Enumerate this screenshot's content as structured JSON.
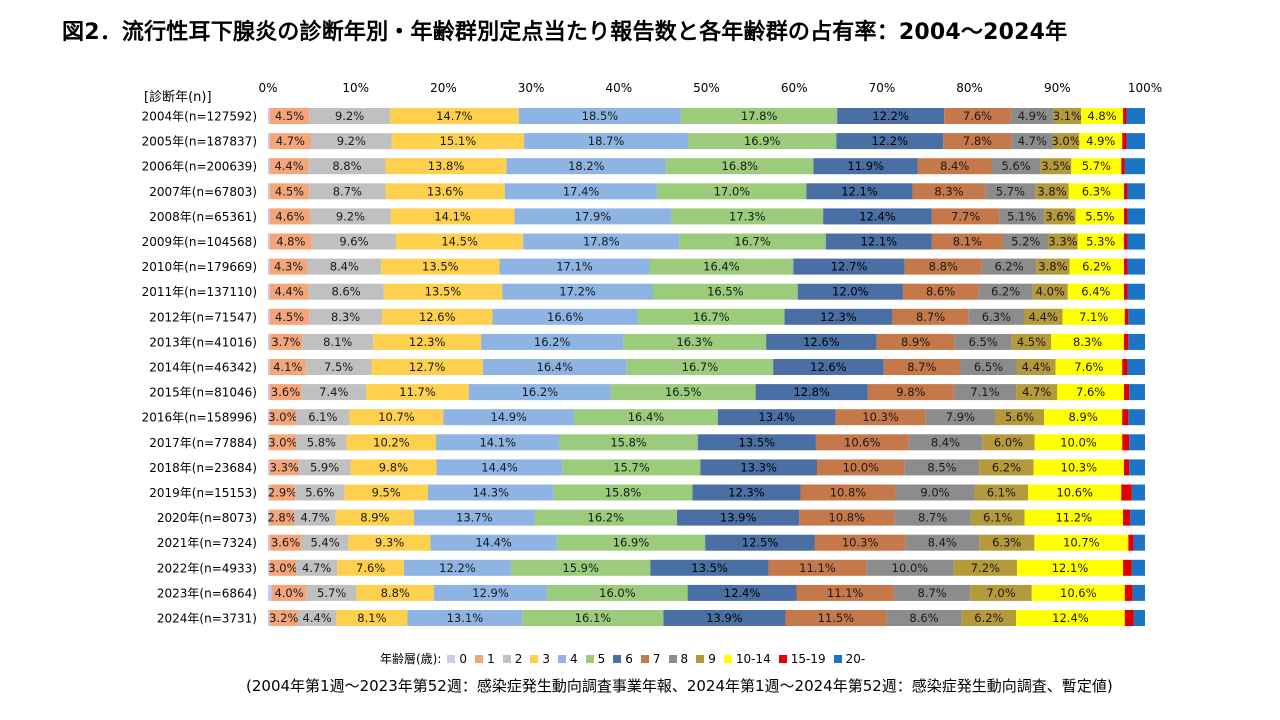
{
  "title": "図2．流行性耳下腺炎の診断年別・年齢群別定点当たり報告数と各年齢群の占有率：2004～2024年",
  "source_note": "(2004年第1週～2023年第52週：感染症発生動向調査事業年報、2024年第1週～2024年第52週：感染症発生動向調査、暫定値)",
  "legend_title": "年齢層(歳):",
  "chart_data": {
    "type": "bar",
    "orientation": "horizontal",
    "stacked": "percent",
    "ylabel": "[診断年(n)]",
    "xlim": [
      0,
      100
    ],
    "x_ticks": [
      "0%",
      "10%",
      "20%",
      "30%",
      "40%",
      "50%",
      "60%",
      "70%",
      "80%",
      "90%",
      "100%"
    ],
    "grid": false,
    "legend_position": "bottom",
    "categories": [
      "2004年(n=127592)",
      "2005年(n=187837)",
      "2006年(n=200639)",
      "2007年(n=67803)",
      "2008年(n=65361)",
      "2009年(n=104568)",
      "2010年(n=179669)",
      "2011年(n=137110)",
      "2012年(n=71547)",
      "2013年(n=41016)",
      "2014年(n=46342)",
      "2015年(n=81046)",
      "2016年(n=158996)",
      "2017年(n=77884)",
      "2018年(n=23684)",
      "2019年(n=15153)",
      "2020年(n=8073)",
      "2021年(n=7324)",
      "2022年(n=4933)",
      "2023年(n=6864)",
      "2024年(n=3731)"
    ],
    "series": [
      {
        "name": "0",
        "color": "#C8C8F0",
        "values": [
          0.2,
          0.2,
          0.2,
          0.2,
          0.2,
          0.2,
          0.2,
          0.2,
          0.2,
          0.2,
          0.2,
          0.2,
          0.2,
          0.2,
          0.2,
          0.2,
          0.2,
          0.2,
          0.2,
          0.4,
          0.2
        ]
      },
      {
        "name": "1",
        "color": "#F4A57A",
        "values": [
          4.5,
          4.7,
          4.4,
          4.5,
          4.6,
          4.8,
          4.3,
          4.4,
          4.5,
          3.7,
          4.1,
          3.6,
          3.0,
          3.0,
          3.3,
          2.9,
          2.8,
          3.6,
          3.0,
          4.0,
          3.2
        ]
      },
      {
        "name": "2",
        "color": "#C0C0C0",
        "values": [
          9.2,
          9.2,
          8.8,
          8.7,
          9.2,
          9.6,
          8.4,
          8.6,
          8.3,
          8.1,
          7.5,
          7.4,
          6.1,
          5.8,
          5.9,
          5.6,
          4.7,
          5.4,
          4.7,
          5.7,
          4.4
        ]
      },
      {
        "name": "3",
        "color": "#FFD04D",
        "values": [
          14.7,
          15.1,
          13.8,
          13.6,
          14.1,
          14.5,
          13.5,
          13.5,
          12.6,
          12.3,
          12.7,
          11.7,
          10.7,
          10.2,
          9.8,
          9.5,
          8.9,
          9.3,
          7.6,
          8.8,
          8.1
        ]
      },
      {
        "name": "4",
        "color": "#8DB4E2",
        "values": [
          18.5,
          18.7,
          18.2,
          17.4,
          17.9,
          17.8,
          17.1,
          17.2,
          16.6,
          16.2,
          16.4,
          16.2,
          14.9,
          14.1,
          14.4,
          14.3,
          13.7,
          14.4,
          12.2,
          12.9,
          13.1
        ]
      },
      {
        "name": "5",
        "color": "#9BCB7B",
        "values": [
          17.8,
          16.9,
          16.8,
          17.0,
          17.3,
          16.7,
          16.4,
          16.5,
          16.7,
          16.3,
          16.7,
          16.5,
          16.4,
          15.8,
          15.7,
          15.8,
          16.2,
          16.9,
          15.9,
          16.0,
          16.1
        ]
      },
      {
        "name": "6",
        "color": "#4A6FA5",
        "values": [
          12.2,
          12.2,
          11.9,
          12.1,
          12.4,
          12.1,
          12.7,
          12.0,
          12.3,
          12.6,
          12.6,
          12.8,
          13.4,
          13.5,
          13.3,
          12.3,
          13.9,
          12.5,
          13.5,
          12.4,
          13.9
        ]
      },
      {
        "name": "7",
        "color": "#C5784A",
        "values": [
          7.6,
          7.8,
          8.4,
          8.3,
          7.7,
          8.1,
          8.8,
          8.6,
          8.7,
          8.9,
          8.7,
          9.8,
          10.3,
          10.6,
          10.0,
          10.8,
          10.8,
          10.3,
          11.1,
          11.1,
          11.5
        ]
      },
      {
        "name": "8",
        "color": "#8C8C8C",
        "values": [
          4.9,
          4.7,
          5.6,
          5.7,
          5.1,
          5.2,
          6.2,
          6.2,
          6.3,
          6.5,
          6.5,
          7.1,
          7.9,
          8.4,
          8.5,
          9.0,
          8.7,
          8.4,
          10.0,
          8.7,
          8.6
        ]
      },
      {
        "name": "9",
        "color": "#B59A3C",
        "values": [
          3.1,
          3.0,
          3.5,
          3.8,
          3.6,
          3.3,
          3.8,
          4.0,
          4.4,
          4.5,
          4.4,
          4.7,
          5.6,
          6.0,
          6.2,
          6.1,
          6.1,
          6.3,
          7.2,
          7.0,
          6.2
        ]
      },
      {
        "name": "10-14",
        "color": "#FFFF00",
        "values": [
          4.8,
          4.9,
          5.7,
          6.3,
          5.5,
          5.3,
          6.2,
          6.4,
          7.1,
          8.3,
          7.6,
          7.6,
          8.9,
          10.0,
          10.3,
          10.6,
          11.2,
          10.7,
          12.1,
          10.6,
          12.4
        ]
      },
      {
        "name": "15-19",
        "color": "#E00000",
        "values": [
          0.4,
          0.5,
          0.4,
          0.4,
          0.4,
          0.4,
          0.4,
          0.4,
          0.4,
          0.5,
          0.6,
          0.6,
          0.7,
          0.8,
          0.6,
          1.2,
          0.8,
          0.6,
          1.0,
          0.9,
          1.0
        ]
      },
      {
        "name": "20-",
        "color": "#1B75C4",
        "values": [
          2.1,
          2.1,
          2.3,
          2.0,
          2.0,
          2.0,
          2.0,
          2.0,
          1.9,
          1.9,
          2.0,
          1.8,
          1.9,
          1.8,
          1.8,
          1.5,
          1.7,
          1.3,
          1.5,
          1.4,
          1.3
        ]
      }
    ],
    "labeled_series": [
      "1",
      "2",
      "3",
      "4",
      "5",
      "6",
      "7",
      "8",
      "9",
      "10-14"
    ]
  }
}
